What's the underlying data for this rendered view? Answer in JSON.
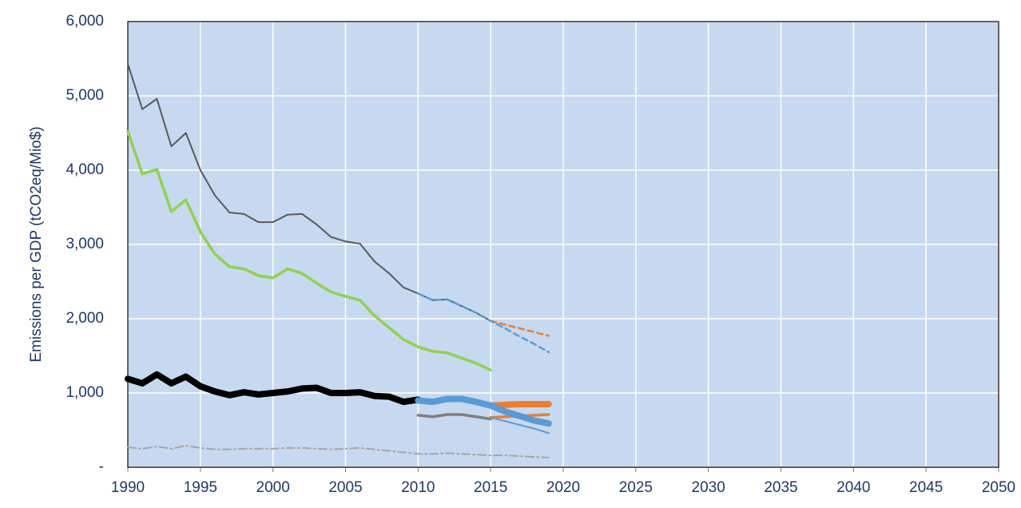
{
  "chart_data": {
    "type": "line",
    "y_label": "Emissions per GDP (tCO2eq/Mio$)",
    "x": [
      1990,
      1991,
      1992,
      1993,
      1994,
      1995,
      1996,
      1997,
      1998,
      1999,
      2000,
      2001,
      2002,
      2003,
      2004,
      2005,
      2006,
      2007,
      2008,
      2009,
      2010,
      2011,
      2012,
      2013,
      2014,
      2015,
      2016,
      2017,
      2018,
      2019
    ],
    "xlim": [
      1990,
      2050
    ],
    "xticks": [
      1990,
      1995,
      2000,
      2005,
      2010,
      2015,
      2020,
      2025,
      2030,
      2035,
      2040,
      2045,
      2050
    ],
    "ylim": [
      0,
      6000
    ],
    "yticks": [
      {
        "value": 0,
        "label": "-"
      },
      {
        "value": 1000,
        "label": "1,000"
      },
      {
        "value": 2000,
        "label": "2,000"
      },
      {
        "value": 3000,
        "label": "3,000"
      },
      {
        "value": 4000,
        "label": "4,000"
      },
      {
        "value": 5000,
        "label": "5,000"
      },
      {
        "value": 6000,
        "label": "6,000"
      }
    ],
    "grid": true,
    "plot_background": "#c6d9f0",
    "series": [
      {
        "color": "#595959",
        "style": "thin",
        "values": [
          5430,
          4820,
          4960,
          4320,
          4500,
          4000,
          3660,
          3430,
          3410,
          3300,
          3300,
          3400,
          3410,
          3270,
          3100,
          3040,
          3010,
          2770,
          2610,
          2420,
          2340,
          2250,
          2260,
          2170,
          2080,
          1970,
          null,
          null,
          null,
          null
        ]
      },
      {
        "color": "#92d050",
        "style": "medium",
        "values": [
          4520,
          3950,
          4010,
          3440,
          3600,
          3170,
          2870,
          2700,
          2670,
          2580,
          2550,
          2670,
          2610,
          2480,
          2360,
          2300,
          2250,
          2040,
          1880,
          1720,
          1620,
          1560,
          1540,
          1470,
          1400,
          1310,
          null,
          null,
          null,
          null
        ]
      },
      {
        "color": "#000000",
        "style": "heavy",
        "values": [
          1190,
          1130,
          1250,
          1130,
          1220,
          1090,
          1020,
          970,
          1010,
          980,
          1000,
          1020,
          1060,
          1070,
          1000,
          1000,
          1010,
          960,
          950,
          880,
          910,
          null,
          null,
          null,
          null,
          null,
          null,
          null,
          null,
          null
        ]
      },
      {
        "color": "#a6a6a6",
        "style": "dash-dot",
        "values": [
          270,
          250,
          280,
          250,
          290,
          260,
          240,
          240,
          250,
          250,
          250,
          260,
          260,
          250,
          240,
          250,
          260,
          240,
          220,
          200,
          180,
          180,
          190,
          180,
          170,
          160,
          160,
          150,
          140,
          130
        ]
      },
      {
        "color": "#7f7f7f",
        "style": "medium",
        "values": [
          null,
          null,
          null,
          null,
          null,
          null,
          null,
          null,
          null,
          null,
          null,
          null,
          null,
          null,
          null,
          null,
          null,
          null,
          null,
          null,
          700,
          680,
          710,
          710,
          680,
          650,
          null,
          null,
          null,
          null
        ]
      },
      {
        "color": "#ed7d31",
        "style": "medium",
        "values": [
          null,
          null,
          null,
          null,
          null,
          null,
          null,
          null,
          null,
          null,
          null,
          null,
          null,
          null,
          null,
          null,
          null,
          null,
          null,
          null,
          null,
          null,
          null,
          null,
          null,
          670,
          680,
          690,
          700,
          710
        ]
      },
      {
        "color": "#ed7d31",
        "style": "heavy",
        "values": [
          null,
          null,
          null,
          null,
          null,
          null,
          null,
          null,
          null,
          null,
          null,
          null,
          null,
          null,
          null,
          null,
          null,
          null,
          null,
          null,
          null,
          null,
          null,
          null,
          null,
          830,
          840,
          850,
          850,
          850
        ]
      },
      {
        "color": "#5b9bd5",
        "style": "thin",
        "values": [
          null,
          null,
          null,
          null,
          null,
          null,
          null,
          null,
          null,
          null,
          null,
          null,
          null,
          null,
          null,
          null,
          null,
          null,
          null,
          null,
          null,
          null,
          null,
          null,
          null,
          670,
          620,
          570,
          520,
          460
        ]
      },
      {
        "color": "#5b9bd5",
        "style": "heavy",
        "values": [
          null,
          null,
          null,
          null,
          null,
          null,
          null,
          null,
          null,
          null,
          null,
          null,
          null,
          null,
          null,
          null,
          null,
          null,
          null,
          null,
          900,
          880,
          920,
          920,
          880,
          830,
          750,
          690,
          630,
          590
        ]
      },
      {
        "color": "#ed7d31",
        "style": "dashed",
        "values": [
          null,
          null,
          null,
          null,
          null,
          null,
          null,
          null,
          null,
          null,
          null,
          null,
          null,
          null,
          null,
          null,
          null,
          null,
          null,
          null,
          null,
          null,
          null,
          null,
          null,
          1970,
          1920,
          1870,
          1820,
          1770
        ]
      },
      {
        "color": "#5b9bd5",
        "style": "dashed",
        "values": [
          null,
          null,
          null,
          null,
          null,
          null,
          null,
          null,
          null,
          null,
          null,
          null,
          null,
          null,
          null,
          null,
          null,
          null,
          null,
          null,
          2340,
          2250,
          2260,
          2170,
          2080,
          1970,
          1870,
          1760,
          1660,
          1550
        ]
      }
    ]
  }
}
